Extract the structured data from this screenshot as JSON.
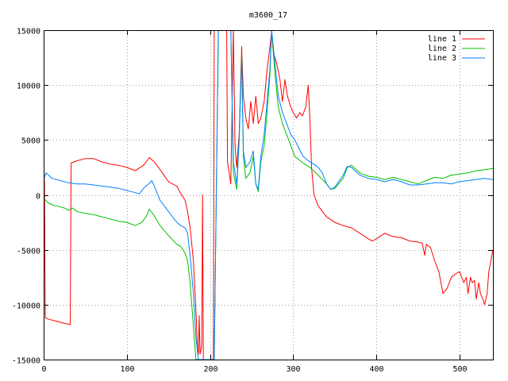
{
  "chart_data": {
    "type": "line",
    "title": "m3600_17",
    "xlabel": "",
    "ylabel": "",
    "xlim": [
      0,
      540
    ],
    "ylim": [
      -15000,
      15000
    ],
    "x_ticks": [
      0,
      100,
      200,
      300,
      400,
      500
    ],
    "y_ticks": [
      -15000,
      -10000,
      -5000,
      0,
      5000,
      10000,
      15000
    ],
    "grid": true,
    "legend_position": "top-right",
    "series": [
      {
        "name": "line 1",
        "color": "#ff0000",
        "points": [
          [
            0,
            3500
          ],
          [
            1,
            1000
          ],
          [
            2,
            -11200
          ],
          [
            5,
            -11300
          ],
          [
            15,
            -11500
          ],
          [
            25,
            -11700
          ],
          [
            32,
            -11800
          ],
          [
            33,
            2900
          ],
          [
            40,
            3100
          ],
          [
            50,
            3300
          ],
          [
            60,
            3300
          ],
          [
            70,
            3000
          ],
          [
            80,
            2800
          ],
          [
            90,
            2700
          ],
          [
            100,
            2500
          ],
          [
            110,
            2200
          ],
          [
            120,
            2700
          ],
          [
            127,
            3400
          ],
          [
            133,
            3000
          ],
          [
            140,
            2300
          ],
          [
            150,
            1200
          ],
          [
            160,
            800
          ],
          [
            165,
            100
          ],
          [
            170,
            -500
          ],
          [
            173,
            -1500
          ],
          [
            176,
            -3000
          ],
          [
            180,
            -6000
          ],
          [
            183,
            -10500
          ],
          [
            185,
            -14000
          ],
          [
            186,
            -14500
          ],
          [
            187,
            -11000
          ],
          [
            188,
            -14500
          ],
          [
            190,
            -13800
          ],
          [
            191,
            0
          ],
          [
            192,
            -15000
          ],
          [
            200,
            -15000
          ],
          [
            204,
            -15000
          ],
          [
            205,
            15000
          ],
          [
            210,
            15000
          ],
          [
            215,
            15000
          ],
          [
            220,
            15000
          ],
          [
            221,
            3000
          ],
          [
            225,
            1000
          ],
          [
            228,
            15000
          ],
          [
            230,
            4500
          ],
          [
            232,
            2500
          ],
          [
            235,
            5500
          ],
          [
            238,
            13500
          ],
          [
            240,
            9000
          ],
          [
            243,
            7000
          ],
          [
            246,
            6000
          ],
          [
            249,
            8500
          ],
          [
            252,
            6500
          ],
          [
            255,
            9000
          ],
          [
            258,
            6500
          ],
          [
            261,
            7000
          ],
          [
            265,
            8500
          ],
          [
            268,
            11000
          ],
          [
            272,
            13500
          ],
          [
            274,
            14800
          ],
          [
            276,
            13000
          ],
          [
            280,
            12000
          ],
          [
            284,
            10500
          ],
          [
            287,
            8500
          ],
          [
            290,
            10500
          ],
          [
            293,
            9000
          ],
          [
            297,
            8000
          ],
          [
            300,
            7500
          ],
          [
            304,
            7000
          ],
          [
            308,
            7500
          ],
          [
            311,
            7200
          ],
          [
            315,
            8000
          ],
          [
            318,
            10000
          ],
          [
            320,
            7000
          ],
          [
            322,
            2500
          ],
          [
            325,
            0
          ],
          [
            330,
            -1000
          ],
          [
            335,
            -1500
          ],
          [
            340,
            -2000
          ],
          [
            350,
            -2500
          ],
          [
            360,
            -2800
          ],
          [
            370,
            -3000
          ],
          [
            380,
            -3500
          ],
          [
            390,
            -4000
          ],
          [
            395,
            -4200
          ],
          [
            400,
            -4000
          ],
          [
            410,
            -3500
          ],
          [
            420,
            -3800
          ],
          [
            430,
            -3900
          ],
          [
            440,
            -4200
          ],
          [
            450,
            -4300
          ],
          [
            455,
            -4400
          ],
          [
            458,
            -5500
          ],
          [
            460,
            -4500
          ],
          [
            465,
            -4800
          ],
          [
            470,
            -6000
          ],
          [
            475,
            -7000
          ],
          [
            480,
            -9000
          ],
          [
            485,
            -8500
          ],
          [
            490,
            -7500
          ],
          [
            495,
            -7200
          ],
          [
            500,
            -7000
          ],
          [
            505,
            -8000
          ],
          [
            508,
            -7500
          ],
          [
            510,
            -9000
          ],
          [
            513,
            -7500
          ],
          [
            515,
            -8000
          ],
          [
            518,
            -7800
          ],
          [
            520,
            -9500
          ],
          [
            523,
            -8000
          ],
          [
            525,
            -9000
          ],
          [
            528,
            -9500
          ],
          [
            530,
            -10000
          ],
          [
            533,
            -9000
          ],
          [
            535,
            -7000
          ],
          [
            540,
            -5000
          ]
        ]
      },
      {
        "name": "line 2",
        "color": "#00c000",
        "points": [
          [
            0,
            -300
          ],
          [
            5,
            -700
          ],
          [
            10,
            -900
          ],
          [
            15,
            -1000
          ],
          [
            20,
            -1100
          ],
          [
            25,
            -1200
          ],
          [
            30,
            -1400
          ],
          [
            35,
            -1200
          ],
          [
            40,
            -1500
          ],
          [
            50,
            -1700
          ],
          [
            60,
            -1800
          ],
          [
            70,
            -2000
          ],
          [
            80,
            -2200
          ],
          [
            90,
            -2400
          ],
          [
            100,
            -2500
          ],
          [
            110,
            -2800
          ],
          [
            118,
            -2500
          ],
          [
            123,
            -2000
          ],
          [
            127,
            -1300
          ],
          [
            132,
            -1800
          ],
          [
            140,
            -2800
          ],
          [
            150,
            -3700
          ],
          [
            160,
            -4500
          ],
          [
            165,
            -4700
          ],
          [
            170,
            -5300
          ],
          [
            173,
            -6000
          ],
          [
            176,
            -8000
          ],
          [
            180,
            -12000
          ],
          [
            183,
            -15000
          ],
          [
            205,
            -15000
          ],
          [
            210,
            15000
          ],
          [
            225,
            15000
          ],
          [
            228,
            2000
          ],
          [
            232,
            500
          ],
          [
            235,
            5000
          ],
          [
            238,
            13000
          ],
          [
            240,
            3500
          ],
          [
            243,
            1500
          ],
          [
            248,
            2000
          ],
          [
            252,
            3500
          ],
          [
            255,
            1000
          ],
          [
            258,
            300
          ],
          [
            261,
            3000
          ],
          [
            265,
            4500
          ],
          [
            268,
            7000
          ],
          [
            272,
            11000
          ],
          [
            274,
            15000
          ],
          [
            278,
            11000
          ],
          [
            282,
            8000
          ],
          [
            287,
            6500
          ],
          [
            292,
            5500
          ],
          [
            297,
            4500
          ],
          [
            302,
            3500
          ],
          [
            310,
            3000
          ],
          [
            320,
            2500
          ],
          [
            330,
            1800
          ],
          [
            340,
            1000
          ],
          [
            345,
            500
          ],
          [
            350,
            600
          ],
          [
            360,
            1500
          ],
          [
            365,
            2500
          ],
          [
            370,
            2700
          ],
          [
            380,
            2000
          ],
          [
            390,
            1700
          ],
          [
            400,
            1600
          ],
          [
            410,
            1400
          ],
          [
            420,
            1600
          ],
          [
            430,
            1400
          ],
          [
            440,
            1200
          ],
          [
            450,
            1000
          ],
          [
            460,
            1300
          ],
          [
            470,
            1600
          ],
          [
            480,
            1500
          ],
          [
            490,
            1800
          ],
          [
            500,
            1900
          ],
          [
            510,
            2000
          ],
          [
            520,
            2200
          ],
          [
            530,
            2300
          ],
          [
            540,
            2400
          ]
        ]
      },
      {
        "name": "line 3",
        "color": "#0080ff",
        "points": [
          [
            0,
            1400
          ],
          [
            3,
            2000
          ],
          [
            10,
            1500
          ],
          [
            20,
            1300
          ],
          [
            30,
            1100
          ],
          [
            40,
            1000
          ],
          [
            50,
            1000
          ],
          [
            60,
            900
          ],
          [
            70,
            800
          ],
          [
            80,
            700
          ],
          [
            90,
            600
          ],
          [
            100,
            400
          ],
          [
            110,
            200
          ],
          [
            115,
            100
          ],
          [
            120,
            600
          ],
          [
            125,
            900
          ],
          [
            130,
            1300
          ],
          [
            133,
            800
          ],
          [
            140,
            -500
          ],
          [
            150,
            -1500
          ],
          [
            160,
            -2500
          ],
          [
            165,
            -2800
          ],
          [
            170,
            -3000
          ],
          [
            173,
            -3500
          ],
          [
            176,
            -5500
          ],
          [
            180,
            -9000
          ],
          [
            183,
            -13000
          ],
          [
            186,
            -15000
          ],
          [
            205,
            -15000
          ],
          [
            210,
            15000
          ],
          [
            225,
            15000
          ],
          [
            228,
            3000
          ],
          [
            232,
            1000
          ],
          [
            235,
            5000
          ],
          [
            238,
            12500
          ],
          [
            240,
            4000
          ],
          [
            243,
            2500
          ],
          [
            248,
            3000
          ],
          [
            252,
            4000
          ],
          [
            255,
            1000
          ],
          [
            258,
            500
          ],
          [
            261,
            3500
          ],
          [
            265,
            5500
          ],
          [
            268,
            8000
          ],
          [
            272,
            11500
          ],
          [
            274,
            15000
          ],
          [
            278,
            12000
          ],
          [
            282,
            9000
          ],
          [
            287,
            7500
          ],
          [
            292,
            6500
          ],
          [
            297,
            5500
          ],
          [
            302,
            5000
          ],
          [
            307,
            4200
          ],
          [
            312,
            3500
          ],
          [
            320,
            3000
          ],
          [
            325,
            2800
          ],
          [
            330,
            2500
          ],
          [
            335,
            2000
          ],
          [
            340,
            1000
          ],
          [
            345,
            500
          ],
          [
            350,
            700
          ],
          [
            360,
            1800
          ],
          [
            365,
            2600
          ],
          [
            370,
            2500
          ],
          [
            380,
            1800
          ],
          [
            390,
            1500
          ],
          [
            400,
            1400
          ],
          [
            410,
            1200
          ],
          [
            420,
            1400
          ],
          [
            430,
            1200
          ],
          [
            440,
            900
          ],
          [
            450,
            900
          ],
          [
            460,
            1000
          ],
          [
            470,
            1100
          ],
          [
            480,
            1100
          ],
          [
            490,
            1000
          ],
          [
            500,
            1200
          ],
          [
            510,
            1300
          ],
          [
            520,
            1400
          ],
          [
            530,
            1500
          ],
          [
            540,
            1400
          ]
        ]
      }
    ]
  }
}
